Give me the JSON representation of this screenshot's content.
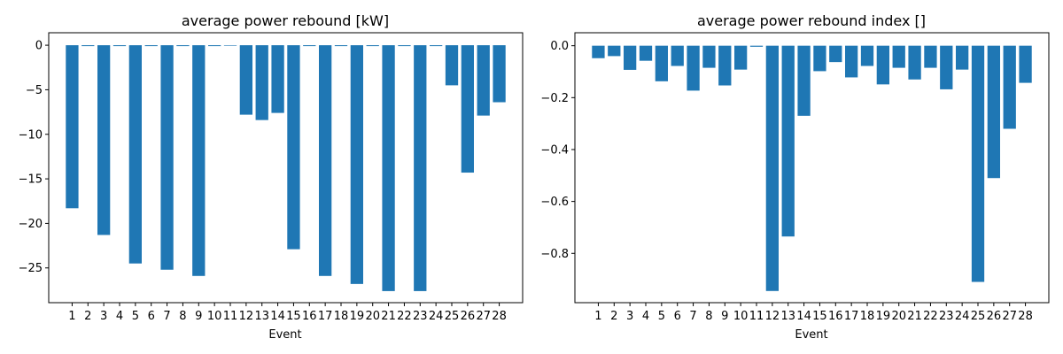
{
  "chart_data": [
    {
      "type": "bar",
      "title": "average power rebound [kW]",
      "xlabel": "Event",
      "ylabel": "",
      "categories": [
        "1",
        "2",
        "3",
        "4",
        "5",
        "6",
        "7",
        "8",
        "9",
        "10",
        "11",
        "12",
        "13",
        "14",
        "15",
        "16",
        "17",
        "18",
        "19",
        "20",
        "21",
        "22",
        "23",
        "24",
        "25",
        "26",
        "27",
        "28"
      ],
      "values": [
        -18.3,
        -0.1,
        -21.3,
        -0.1,
        -24.5,
        -0.1,
        -25.2,
        -0.1,
        -25.9,
        -0.1,
        0,
        -7.8,
        -8.4,
        -7.6,
        -22.9,
        -0.1,
        -25.9,
        -0.1,
        -26.8,
        -0.1,
        -27.6,
        -0.1,
        -27.6,
        -0.1,
        -4.5,
        -14.3,
        -7.9,
        -6.4
      ],
      "ylim": [
        -28.9,
        1.4
      ],
      "yticks": [
        0,
        -5,
        -10,
        -15,
        -20,
        -25
      ],
      "color": "#1f77b4"
    },
    {
      "type": "bar",
      "title": "average power rebound index []",
      "xlabel": "Event",
      "ylabel": "",
      "categories": [
        "1",
        "2",
        "3",
        "4",
        "5",
        "6",
        "7",
        "8",
        "9",
        "10",
        "11",
        "12",
        "13",
        "14",
        "15",
        "16",
        "17",
        "18",
        "19",
        "20",
        "21",
        "22",
        "23",
        "24",
        "25",
        "26",
        "27",
        "28"
      ],
      "values": [
        -0.048,
        -0.04,
        -0.093,
        -0.058,
        -0.137,
        -0.078,
        -0.173,
        -0.085,
        -0.153,
        -0.092,
        -0.004,
        -0.945,
        -0.735,
        -0.27,
        -0.098,
        -0.063,
        -0.122,
        -0.078,
        -0.149,
        -0.085,
        -0.13,
        -0.085,
        -0.168,
        -0.092,
        -0.91,
        -0.51,
        -0.32,
        -0.143
      ],
      "ylim": [
        -0.99,
        0.05
      ],
      "yticks": [
        0.0,
        -0.2,
        -0.4,
        -0.6,
        -0.8
      ],
      "ytick_labels": [
        "0.0",
        "−0.2",
        "−0.4",
        "−0.6",
        "−0.8"
      ],
      "color": "#1f77b4"
    }
  ]
}
